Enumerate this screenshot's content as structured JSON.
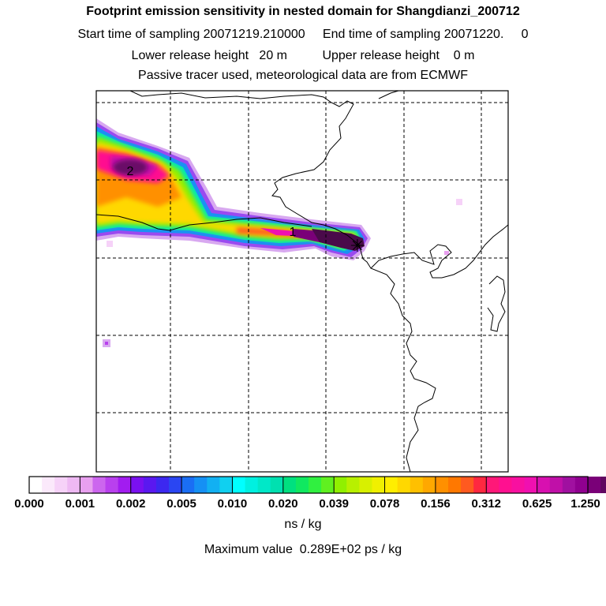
{
  "titles": {
    "line1": "Footprint emission sensitivity in nested domain for Shangdianzi_200712",
    "line2": "Start time of sampling 20071219.210000     End time of sampling 20071220.     0",
    "line3": "Lower release height   20 m          Upper release height    0 m",
    "line4": "Passive tracer used, meteorological data are from ECMWF"
  },
  "map": {
    "markers": [
      {
        "label": "1"
      },
      {
        "label": "2"
      }
    ],
    "receptor_symbol": "✳"
  },
  "colorbar": {
    "tick_labels": [
      "0.000",
      "0.001",
      "0.002",
      "0.005",
      "0.010",
      "0.020",
      "0.039",
      "0.078",
      "0.156",
      "0.312",
      "0.625",
      "1.250"
    ],
    "colors": [
      "#ffffff",
      "#fbe9fb",
      "#f6d2f8",
      "#eeb9f3",
      "#e8a0ef",
      "#cc66ee",
      "#b940ee",
      "#a21cf0",
      "#7a10f0",
      "#5a18f0",
      "#3c28f0",
      "#2a46f2",
      "#1a6ef4",
      "#1590f4",
      "#12b0f2",
      "#10d0f0",
      "#00ffff",
      "#00f0e0",
      "#00e8c8",
      "#00e0b0",
      "#00e080",
      "#10e860",
      "#30f040",
      "#60f020",
      "#90f000",
      "#b8f000",
      "#d8f000",
      "#f0f000",
      "#ffee00",
      "#ffd800",
      "#ffc000",
      "#ffa800",
      "#ff9000",
      "#ff7800",
      "#ff5a20",
      "#ff2840",
      "#ff1878",
      "#ff1090",
      "#f810a0",
      "#f010b0",
      "#d810b0",
      "#c010a8",
      "#a010a0",
      "#900090",
      "#7a0078",
      "#600860",
      "#4a0a4a",
      "#3a0838"
    ]
  },
  "units": "ns / kg",
  "max_value": "Maximum value  0.289E+02 ps / kg"
}
